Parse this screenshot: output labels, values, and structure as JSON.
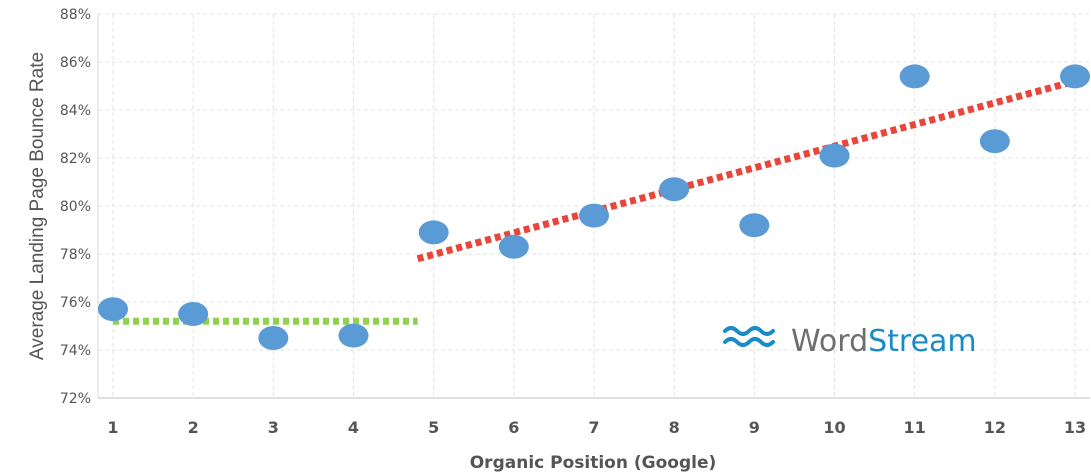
{
  "chart_data": {
    "type": "scatter",
    "xlabel": "Organic Position (Google)",
    "ylabel": "Average Landing Page Bounce Rate",
    "xlim": [
      1,
      13
    ],
    "ylim": [
      72,
      88
    ],
    "x_ticks": [
      "1",
      "2",
      "3",
      "4",
      "5",
      "6",
      "7",
      "8",
      "9",
      "10",
      "11",
      "12",
      "13"
    ],
    "y_ticks": [
      "72%",
      "74%",
      "76%",
      "78%",
      "80%",
      "82%",
      "84%",
      "86%",
      "88%"
    ],
    "y_tick_values": [
      72,
      74,
      76,
      78,
      80,
      82,
      84,
      86,
      88
    ],
    "grid": true,
    "series": [
      {
        "x": [
          1,
          2,
          3,
          4,
          5,
          6,
          7,
          8,
          9,
          10,
          11,
          12,
          13
        ],
        "y": [
          75.7,
          75.5,
          74.5,
          74.6,
          78.9,
          78.3,
          79.6,
          80.7,
          79.2,
          82.1,
          85.4,
          82.7,
          85.4
        ],
        "color": "#5b9bd5"
      }
    ],
    "trendlines": [
      {
        "x": [
          1,
          4.8
        ],
        "y": [
          75.2,
          75.2
        ],
        "color": "#92d050",
        "style": "dotted"
      },
      {
        "x": [
          4.8,
          13
        ],
        "y": [
          77.8,
          85.2
        ],
        "color": "#e8463a",
        "style": "dotted"
      }
    ],
    "watermark": {
      "text_part1": "Word",
      "text_part2": "Stream",
      "icon": "wave-icon",
      "color_dark": "#6d6e71",
      "color_accent": "#1b8bc7"
    }
  }
}
